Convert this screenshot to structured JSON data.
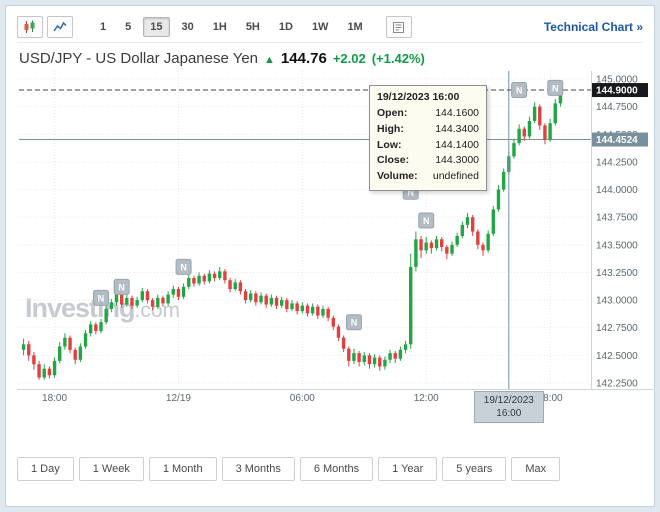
{
  "toolbar": {
    "intervals": [
      "1",
      "5",
      "15",
      "30",
      "1H",
      "5H",
      "1D",
      "1W",
      "1M"
    ],
    "selected_interval": "15",
    "icons": [
      "candlestick-chart-icon",
      "line-chart-icon",
      "news-report-icon"
    ],
    "technical_chart_label": "Technical Chart »"
  },
  "header": {
    "title": "USD/JPY - US Dollar Japanese Yen",
    "arrow": "▲",
    "price": "144.76",
    "change": "+2.02",
    "change_pct": "(+1.42%)",
    "change_color": "#0e9c49"
  },
  "tooltip": {
    "title": "19/12/2023 16:00",
    "rows": [
      {
        "label": "Open:",
        "value": "144.1600"
      },
      {
        "label": "High:",
        "value": "144.3400"
      },
      {
        "label": "Low:",
        "value": "144.1400"
      },
      {
        "label": "Close:",
        "value": "144.3000"
      },
      {
        "label": "Volume:",
        "value": "undefined"
      }
    ]
  },
  "watermark": {
    "bold": "Investing",
    "rest": ".com"
  },
  "range_buttons": [
    "1 Day",
    "1 Week",
    "1 Month",
    "3 Months",
    "6 Months",
    "1 Year",
    "5 years",
    "Max"
  ],
  "chart_data": {
    "type": "candlestick",
    "title": "USD/JPY 15-minute candlestick chart",
    "ylim": [
      142.25,
      145.0
    ],
    "y_ticks": [
      "145.0000",
      "144.7500",
      "144.5000",
      "144.2500",
      "144.0000",
      "143.7500",
      "143.5000",
      "143.2500",
      "143.0000",
      "142.7500",
      "142.5000",
      "142.2500"
    ],
    "x_labels": [
      {
        "index": 6,
        "label": "18:00"
      },
      {
        "index": 30,
        "label": "12/19"
      },
      {
        "index": 54,
        "label": "06:00"
      },
      {
        "index": 78,
        "label": "12:00"
      },
      {
        "index": 102,
        "label": "18:00"
      }
    ],
    "colors": {
      "up": "#22a544",
      "down": "#e04040",
      "grid": "#e7e9eb",
      "axis": "#cfd4d9",
      "crosshair": "#6f96b4",
      "reference": "#78909c"
    },
    "crosshair": {
      "index": 94,
      "price": 144.9,
      "price_label": "144.9000",
      "time_label_line1": "19/12/2023",
      "time_label_line2": "16:00"
    },
    "reference_line": {
      "price": 144.4524,
      "label": "144.4524"
    },
    "news_markers": [
      {
        "index": 15,
        "price": 143.02
      },
      {
        "index": 19,
        "price": 143.12
      },
      {
        "index": 31,
        "price": 143.3
      },
      {
        "index": 64,
        "price": 142.8
      },
      {
        "index": 75,
        "price": 143.98
      },
      {
        "index": 78,
        "price": 143.72
      },
      {
        "index": 96,
        "price": 144.9
      },
      {
        "index": 103,
        "price": 144.92
      }
    ],
    "candles": [
      [
        142.55,
        142.65,
        142.5,
        142.6
      ],
      [
        142.6,
        142.63,
        142.45,
        142.5
      ],
      [
        142.5,
        142.53,
        142.37,
        142.42
      ],
      [
        142.42,
        142.45,
        142.28,
        142.3
      ],
      [
        142.3,
        142.42,
        142.28,
        142.38
      ],
      [
        142.38,
        142.4,
        142.29,
        142.32
      ],
      [
        142.32,
        142.48,
        142.3,
        142.45
      ],
      [
        142.45,
        142.62,
        142.43,
        142.58
      ],
      [
        142.58,
        142.7,
        142.55,
        142.66
      ],
      [
        142.66,
        142.68,
        142.52,
        142.55
      ],
      [
        142.55,
        142.57,
        142.42,
        142.46
      ],
      [
        142.46,
        142.61,
        142.44,
        142.58
      ],
      [
        142.58,
        142.73,
        142.56,
        142.7
      ],
      [
        142.7,
        142.81,
        142.67,
        142.78
      ],
      [
        142.78,
        142.8,
        142.69,
        142.72
      ],
      [
        142.72,
        142.83,
        142.7,
        142.8
      ],
      [
        142.8,
        142.95,
        142.78,
        142.92
      ],
      [
        142.92,
        143.01,
        142.89,
        142.98
      ],
      [
        142.98,
        143.08,
        142.95,
        143.05
      ],
      [
        143.05,
        143.07,
        142.93,
        142.96
      ],
      [
        142.96,
        143.05,
        142.94,
        143.02
      ],
      [
        143.02,
        143.04,
        142.92,
        142.95
      ],
      [
        142.95,
        143.03,
        142.93,
        143.0
      ],
      [
        143.0,
        143.11,
        142.98,
        143.08
      ],
      [
        143.08,
        143.1,
        142.97,
        143.0
      ],
      [
        143.0,
        143.02,
        142.91,
        142.94
      ],
      [
        142.94,
        143.05,
        142.92,
        143.02
      ],
      [
        143.02,
        143.04,
        142.94,
        142.97
      ],
      [
        142.97,
        143.08,
        142.95,
        143.05
      ],
      [
        143.05,
        143.13,
        143.02,
        143.1
      ],
      [
        143.1,
        143.12,
        143.0,
        143.03
      ],
      [
        143.03,
        143.15,
        143.01,
        143.12
      ],
      [
        143.12,
        143.23,
        143.1,
        143.2
      ],
      [
        143.2,
        143.22,
        143.12,
        143.15
      ],
      [
        143.15,
        143.25,
        143.13,
        143.22
      ],
      [
        143.22,
        143.24,
        143.14,
        143.17
      ],
      [
        143.17,
        143.27,
        143.15,
        143.24
      ],
      [
        143.24,
        143.26,
        143.17,
        143.2
      ],
      [
        143.2,
        143.3,
        143.18,
        143.26
      ],
      [
        143.26,
        143.28,
        143.15,
        143.18
      ],
      [
        143.18,
        143.2,
        143.07,
        143.1
      ],
      [
        143.1,
        143.19,
        143.08,
        143.16
      ],
      [
        143.16,
        143.18,
        143.05,
        143.08
      ],
      [
        143.08,
        143.1,
        142.97,
        143.0
      ],
      [
        143.0,
        143.09,
        142.98,
        143.06
      ],
      [
        143.06,
        143.08,
        142.95,
        142.98
      ],
      [
        142.98,
        143.07,
        142.96,
        143.04
      ],
      [
        143.04,
        143.06,
        142.93,
        142.96
      ],
      [
        142.96,
        143.05,
        142.94,
        143.02
      ],
      [
        143.02,
        143.04,
        142.92,
        142.95
      ],
      [
        142.95,
        143.03,
        142.93,
        143.0
      ],
      [
        143.0,
        143.02,
        142.89,
        142.92
      ],
      [
        142.92,
        143.0,
        142.9,
        142.97
      ],
      [
        142.97,
        142.99,
        142.87,
        142.9
      ],
      [
        142.9,
        142.98,
        142.88,
        142.95
      ],
      [
        142.95,
        142.97,
        142.85,
        142.88
      ],
      [
        142.88,
        142.97,
        142.86,
        142.94
      ],
      [
        142.94,
        142.96,
        142.83,
        142.86
      ],
      [
        142.86,
        142.95,
        142.84,
        142.92
      ],
      [
        142.92,
        142.94,
        142.81,
        142.84
      ],
      [
        142.84,
        142.86,
        142.73,
        142.76
      ],
      [
        142.76,
        142.78,
        142.63,
        142.66
      ],
      [
        142.66,
        142.68,
        142.53,
        142.56
      ],
      [
        142.56,
        142.58,
        142.4,
        142.45
      ],
      [
        142.45,
        142.56,
        142.42,
        142.52
      ],
      [
        142.52,
        142.54,
        142.4,
        142.44
      ],
      [
        142.44,
        142.53,
        142.41,
        142.5
      ],
      [
        142.5,
        142.52,
        142.38,
        142.42
      ],
      [
        142.42,
        142.51,
        142.39,
        142.48
      ],
      [
        142.48,
        142.5,
        142.36,
        142.4
      ],
      [
        142.4,
        142.49,
        142.37,
        142.46
      ],
      [
        142.46,
        142.55,
        142.43,
        142.52
      ],
      [
        142.52,
        142.54,
        142.43,
        142.47
      ],
      [
        142.47,
        142.58,
        142.45,
        142.55
      ],
      [
        142.55,
        142.63,
        142.52,
        142.6
      ],
      [
        142.6,
        143.42,
        142.56,
        143.3
      ],
      [
        143.3,
        143.62,
        143.26,
        143.55
      ],
      [
        143.55,
        143.58,
        143.38,
        143.45
      ],
      [
        143.45,
        143.57,
        143.42,
        143.52
      ],
      [
        143.52,
        143.54,
        143.42,
        143.47
      ],
      [
        143.47,
        143.58,
        143.45,
        143.55
      ],
      [
        143.55,
        143.57,
        143.44,
        143.48
      ],
      [
        143.48,
        143.5,
        143.37,
        143.42
      ],
      [
        143.42,
        143.53,
        143.4,
        143.5
      ],
      [
        143.5,
        143.61,
        143.48,
        143.58
      ],
      [
        143.58,
        143.71,
        143.56,
        143.68
      ],
      [
        143.68,
        143.79,
        143.65,
        143.75
      ],
      [
        143.75,
        143.77,
        143.58,
        143.62
      ],
      [
        143.62,
        143.64,
        143.46,
        143.5
      ],
      [
        143.5,
        143.52,
        143.4,
        143.45
      ],
      [
        143.45,
        143.63,
        143.43,
        143.6
      ],
      [
        143.6,
        143.85,
        143.58,
        143.82
      ],
      [
        143.82,
        144.04,
        143.8,
        144.0
      ],
      [
        144.0,
        144.19,
        143.98,
        144.16
      ],
      [
        144.16,
        144.34,
        144.14,
        144.3
      ],
      [
        144.3,
        144.46,
        144.28,
        144.42
      ],
      [
        144.42,
        144.59,
        144.4,
        144.55
      ],
      [
        144.55,
        144.57,
        144.44,
        144.48
      ],
      [
        144.48,
        144.66,
        144.46,
        144.62
      ],
      [
        144.62,
        144.79,
        144.6,
        144.75
      ],
      [
        144.75,
        144.77,
        144.54,
        144.58
      ],
      [
        144.58,
        144.6,
        144.41,
        144.45
      ],
      [
        144.45,
        144.64,
        144.43,
        144.6
      ],
      [
        144.6,
        144.82,
        144.58,
        144.78
      ],
      [
        144.78,
        144.93,
        144.75,
        144.88
      ]
    ]
  }
}
